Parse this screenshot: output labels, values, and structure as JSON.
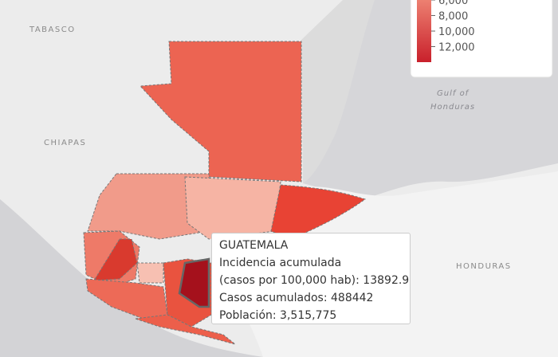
{
  "map": {
    "labels": {
      "tabasco": "TABASCO",
      "chiapas": "CHIAPAS",
      "gulf": [
        "Gulf of",
        "Honduras"
      ],
      "honduras": "HONDURAS"
    },
    "legend": {
      "ticks": [
        "6,000",
        "8,000",
        "10,000",
        "12,000"
      ]
    },
    "tooltip": {
      "title": "GUATEMALA",
      "lines": [
        "Incidencia acumulada",
        "(casos por 100,000 hab): 13892.9",
        "Casos acumulados: 488442",
        "Población: 3,515,775"
      ]
    }
  }
}
